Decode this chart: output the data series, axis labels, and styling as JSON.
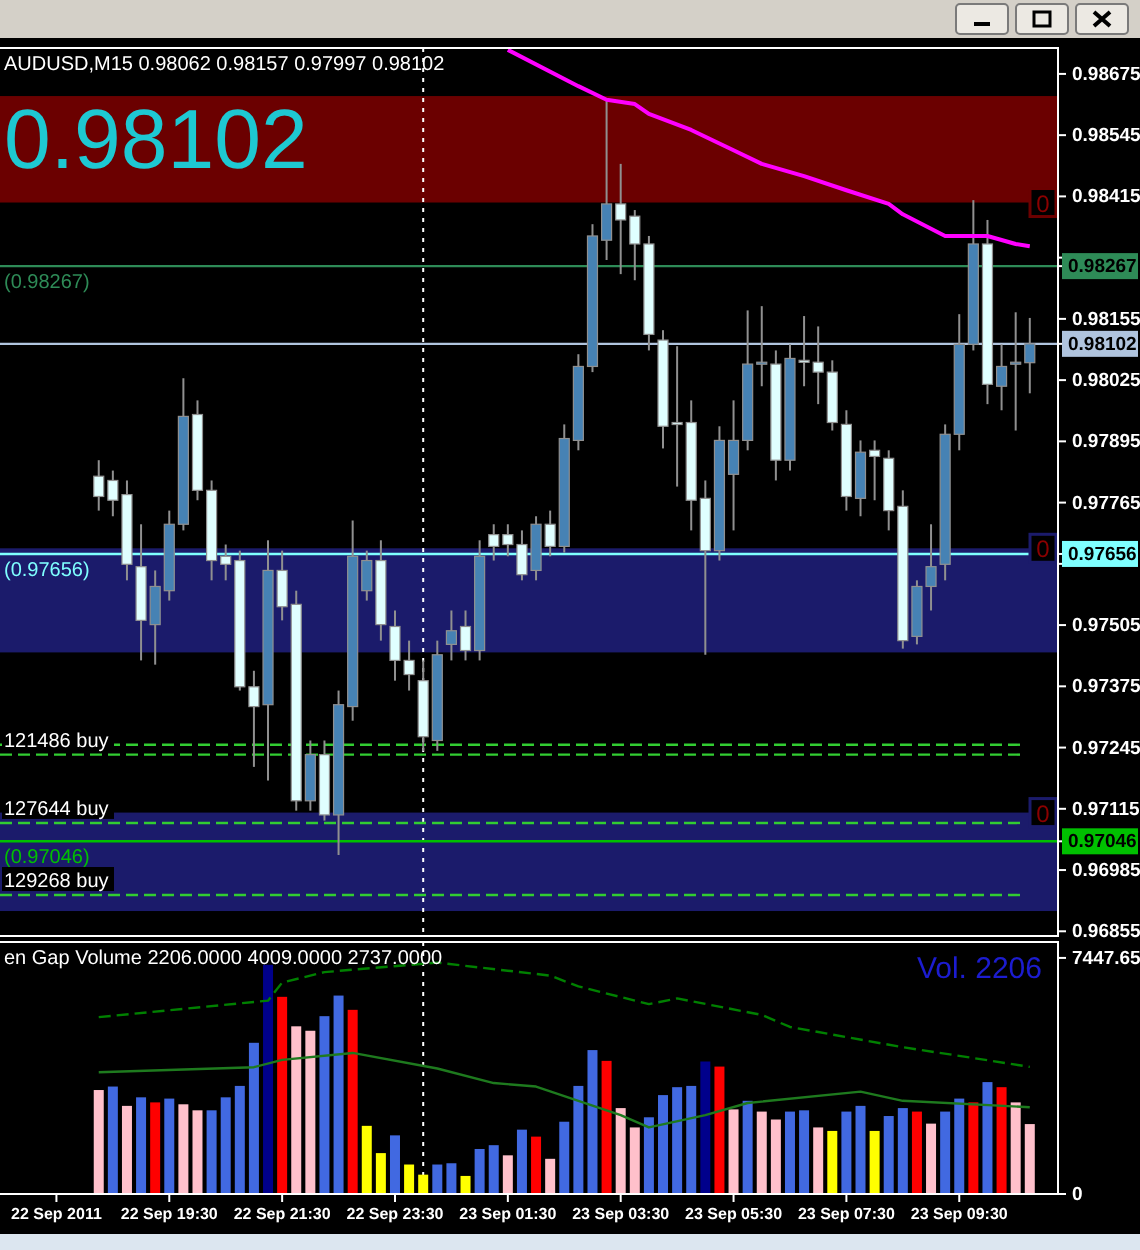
{
  "chart_data": [
    {
      "type": "candlestick",
      "title": "AUDUSD,M15 0.98062 0.98157 0.97997 0.98102",
      "annotations": [
        "0.98102"
      ],
      "x": [
        "2011-09-22T18:15",
        "2011-09-22T18:30",
        "2011-09-22T18:45",
        "2011-09-22T19:00",
        "2011-09-22T19:15",
        "2011-09-22T19:30",
        "2011-09-22T19:45",
        "2011-09-22T20:00",
        "2011-09-22T20:15",
        "2011-09-22T20:30",
        "2011-09-22T20:45",
        "2011-09-22T21:00",
        "2011-09-22T21:15",
        "2011-09-22T21:30",
        "2011-09-22T21:45",
        "2011-09-22T22:00",
        "2011-09-22T22:15",
        "2011-09-22T22:30",
        "2011-09-22T22:45",
        "2011-09-22T23:00",
        "2011-09-22T23:15",
        "2011-09-22T23:30",
        "2011-09-22T23:45",
        "2011-09-23T00:00",
        "2011-09-23T00:15",
        "2011-09-23T00:30",
        "2011-09-23T00:45",
        "2011-09-23T01:00",
        "2011-09-23T01:15",
        "2011-09-23T01:30",
        "2011-09-23T01:45",
        "2011-09-23T02:00",
        "2011-09-23T02:15",
        "2011-09-23T02:30",
        "2011-09-23T02:45",
        "2011-09-23T03:00",
        "2011-09-23T03:15",
        "2011-09-23T03:30",
        "2011-09-23T03:45",
        "2011-09-23T04:00",
        "2011-09-23T04:15",
        "2011-09-23T04:30",
        "2011-09-23T04:45",
        "2011-09-23T05:00",
        "2011-09-23T05:15",
        "2011-09-23T05:30",
        "2011-09-23T05:45",
        "2011-09-23T06:00",
        "2011-09-23T06:15",
        "2011-09-23T06:30",
        "2011-09-23T06:45",
        "2011-09-23T07:00",
        "2011-09-23T07:15",
        "2011-09-23T07:30",
        "2011-09-23T07:45",
        "2011-09-23T08:00",
        "2011-09-23T08:15",
        "2011-09-23T08:30",
        "2011-09-23T08:45",
        "2011-09-23T09:00",
        "2011-09-23T09:15",
        "2011-09-23T09:30",
        "2011-09-23T09:45",
        "2011-09-23T10:00",
        "2011-09-23T10:15",
        "2011-09-23T10:30",
        "2011-09-23T10:45"
      ],
      "ohlc": [
        [
          0.97821,
          0.97855,
          0.97748,
          0.97778
        ],
        [
          0.97812,
          0.97833,
          0.97736,
          0.9777
        ],
        [
          0.97782,
          0.97812,
          0.976,
          0.97634
        ],
        [
          0.97629,
          0.97719,
          0.9743,
          0.97515
        ],
        [
          0.97506,
          0.97621,
          0.97421,
          0.97587
        ],
        [
          0.97578,
          0.97748,
          0.97557,
          0.97719
        ],
        [
          0.97719,
          0.98029,
          0.97706,
          0.97948
        ],
        [
          0.97952,
          0.97982,
          0.9777,
          0.97791
        ],
        [
          0.97791,
          0.97812,
          0.976,
          0.97642
        ],
        [
          0.97651,
          0.97676,
          0.976,
          0.97634
        ],
        [
          0.97642,
          0.97663,
          0.97366,
          0.97374
        ],
        [
          0.97374,
          0.97408,
          0.97204,
          0.97332
        ],
        [
          0.97336,
          0.97685,
          0.97175,
          0.97621
        ],
        [
          0.97621,
          0.97663,
          0.97515,
          0.97544
        ],
        [
          0.97549,
          0.97578,
          0.97111,
          0.97132
        ],
        [
          0.97132,
          0.9726,
          0.97111,
          0.9723
        ],
        [
          0.9723,
          0.9726,
          0.9709,
          0.97102
        ],
        [
          0.97102,
          0.97366,
          0.97017,
          0.97336
        ],
        [
          0.97332,
          0.97727,
          0.97302,
          0.97651
        ],
        [
          0.97578,
          0.97663,
          0.97557,
          0.97642
        ],
        [
          0.97642,
          0.97685,
          0.97472,
          0.97506
        ],
        [
          0.97502,
          0.97536,
          0.97387,
          0.9743
        ],
        [
          0.9743,
          0.97472,
          0.97366,
          0.974
        ],
        [
          0.97387,
          0.9743,
          0.97238,
          0.97268
        ],
        [
          0.9726,
          0.97472,
          0.97238,
          0.97442
        ],
        [
          0.97464,
          0.97536,
          0.9743,
          0.97493
        ],
        [
          0.97502,
          0.97536,
          0.9743,
          0.97451
        ],
        [
          0.97451,
          0.97685,
          0.9743,
          0.97651
        ],
        [
          0.97697,
          0.97719,
          0.97642,
          0.97672
        ],
        [
          0.97697,
          0.97719,
          0.97651,
          0.97676
        ],
        [
          0.97676,
          0.97706,
          0.976,
          0.97612
        ],
        [
          0.97621,
          0.97736,
          0.976,
          0.97719
        ],
        [
          0.97719,
          0.97748,
          0.97651,
          0.97672
        ],
        [
          0.97672,
          0.97931,
          0.97659,
          0.97901
        ],
        [
          0.97897,
          0.9808,
          0.97876,
          0.98054
        ],
        [
          0.98054,
          0.98356,
          0.98042,
          0.98331
        ],
        [
          0.98322,
          0.9862,
          0.9828,
          0.98399
        ],
        [
          0.98399,
          0.98484,
          0.9825,
          0.98365
        ],
        [
          0.98373,
          0.98386,
          0.98237,
          0.98314
        ],
        [
          0.98314,
          0.98331,
          0.98088,
          0.98122
        ],
        [
          0.9811,
          0.98131,
          0.9788,
          0.97927
        ],
        [
          0.97935,
          0.98097,
          0.97799,
          0.97931
        ],
        [
          0.97935,
          0.97982,
          0.97706,
          0.9777
        ],
        [
          0.97774,
          0.97812,
          0.97442,
          0.97663
        ],
        [
          0.97663,
          0.97927,
          0.97642,
          0.97897
        ],
        [
          0.97825,
          0.97982,
          0.97706,
          0.97897
        ],
        [
          0.97897,
          0.98173,
          0.97876,
          0.98059
        ],
        [
          0.98059,
          0.98182,
          0.98012,
          0.98063
        ],
        [
          0.98059,
          0.98088,
          0.97812,
          0.97855
        ],
        [
          0.97855,
          0.98101,
          0.97833,
          0.98071
        ],
        [
          0.98067,
          0.98161,
          0.98012,
          0.98063
        ],
        [
          0.98063,
          0.98139,
          0.97974,
          0.98042
        ],
        [
          0.98042,
          0.98067,
          0.97918,
          0.97935
        ],
        [
          0.97931,
          0.97961,
          0.97748,
          0.97778
        ],
        [
          0.97774,
          0.97897,
          0.97736,
          0.97872
        ],
        [
          0.97876,
          0.97897,
          0.9777,
          0.97863
        ],
        [
          0.97859,
          0.97876,
          0.97706,
          0.97748
        ],
        [
          0.97757,
          0.97791,
          0.97455,
          0.97472
        ],
        [
          0.97481,
          0.976,
          0.97464,
          0.97587
        ],
        [
          0.97587,
          0.97719,
          0.97536,
          0.97629
        ],
        [
          0.97634,
          0.97931,
          0.976,
          0.9791
        ],
        [
          0.9791,
          0.98165,
          0.97876,
          0.98101
        ],
        [
          0.98101,
          0.98407,
          0.98088,
          0.98314
        ],
        [
          0.98314,
          0.98365,
          0.97974,
          0.98016
        ],
        [
          0.98012,
          0.98101,
          0.97961,
          0.98054
        ],
        [
          0.98059,
          0.98169,
          0.97918,
          0.98063
        ],
        [
          0.98062,
          0.98157,
          0.97997,
          0.98102
        ]
      ],
      "colors": [
        "#e0ffff",
        "#e0ffff",
        "#e0ffff",
        "#e0ffff",
        "#4682b4",
        "#4682b4",
        "#4682b4",
        "#e0ffff",
        "#e0ffff",
        "#e0ffff",
        "#e0ffff",
        "#e0ffff",
        "#4682b4",
        "#e0ffff",
        "#e0ffff",
        "#4682b4",
        "#e0ffff",
        "#4682b4",
        "#4682b4",
        "#4682b4",
        "#e0ffff",
        "#e0ffff",
        "#e0ffff",
        "#e0ffff",
        "#4682b4",
        "#4682b4",
        "#e0ffff",
        "#4682b4",
        "#e0ffff",
        "#e0ffff",
        "#e0ffff",
        "#4682b4",
        "#e0ffff",
        "#4682b4",
        "#4682b4",
        "#4682b4",
        "#4682b4",
        "#e0ffff",
        "#e0ffff",
        "#e0ffff",
        "#e0ffff",
        "#e0ffff",
        "#e0ffff",
        "#e0ffff",
        "#4682b4",
        "#4682b4",
        "#4682b4",
        "#4682b4",
        "#e0ffff",
        "#4682b4",
        "#e0ffff",
        "#e0ffff",
        "#e0ffff",
        "#e0ffff",
        "#4682b4",
        "#e0ffff",
        "#e0ffff",
        "#e0ffff",
        "#4682b4",
        "#4682b4",
        "#4682b4",
        "#4682b4",
        "#4682b4",
        "#e0ffff",
        "#4682b4",
        "#4682b4",
        "#4682b4"
      ],
      "series": [
        {
          "type": "line",
          "color": "#ff00ff",
          "x": [
            "2011-09-23T01:30",
            "2011-09-23T02:45",
            "2011-09-23T03:15",
            "2011-09-23T03:45",
            "2011-09-23T04:00",
            "2011-09-23T04:45",
            "2011-09-23T05:30",
            "2011-09-23T06:00",
            "2011-09-23T06:45",
            "2011-09-23T07:30",
            "2011-09-23T08:15",
            "2011-09-23T08:30",
            "2011-09-23T09:15",
            "2011-09-23T10:00",
            "2011-09-23T10:30",
            "2011-09-23T10:45"
          ],
          "values": [
            0.98726,
            0.98649,
            0.9862,
            0.98611,
            0.9859,
            0.98556,
            0.98513,
            0.98484,
            0.98458,
            0.98428,
            0.98399,
            0.98377,
            0.98331,
            0.98331,
            0.98314,
            0.98309
          ]
        }
      ],
      "xlim": [
        "2011-09-22T16:30",
        "2011-09-23T11:15"
      ],
      "ylim": [
        0.96845,
        0.9873
      ],
      "yticks": [
        0.98675,
        0.98545,
        0.98415,
        {
          "value": 0.98285,
          "label": null
        },
        0.98267,
        0.98155,
        0.98102,
        0.98025,
        0.97895,
        0.97765,
        0.97656,
        {
          "value": 0.97635,
          "label": null
        },
        0.97505,
        0.97375,
        0.97245,
        0.97115,
        0.97046,
        0.96985,
        0.96855
      ],
      "tick_labels": "y",
      "bands": [
        {
          "axis": "y",
          "from": 0.98628,
          "to": 0.98402,
          "label": "0",
          "color": "#6b0000"
        },
        {
          "axis": "y",
          "from": 0.97447,
          "to": 0.97668,
          "label": "0",
          "color": "#1b1b6b"
        },
        {
          "axis": "y",
          "from": 0.96898,
          "to": 0.97107,
          "label": "0",
          "color": "#1b1b6b"
        }
      ],
      "ref_lines": [
        {
          "axis": "x",
          "value": "2011-09-23T00:00",
          "color": "#ffffff",
          "line_style": "dotted"
        },
        {
          "axis": "y",
          "value": 0.98267,
          "label": "(0.98267)",
          "color": "#2e8b57",
          "line_style": "solid"
        },
        {
          "axis": "y",
          "value": 0.98102,
          "color": "#b0c4de",
          "line_style": "solid"
        },
        {
          "axis": "y",
          "value": 0.97656,
          "label": "(0.97656)",
          "color": "#7fffff",
          "line_style": "solid"
        },
        {
          "axis": "y",
          "value": 0.97046,
          "label": "(0.97046)",
          "color": "#00c000",
          "line_style": "solid"
        },
        {
          "axis": "y",
          "value": 0.97251,
          "color": "#32cd32",
          "line_style": "dashed"
        },
        {
          "axis": "y",
          "value": 0.9723,
          "label": "121486 buy",
          "color": "#32cd32",
          "line_style": "dashed"
        },
        {
          "axis": "y",
          "value": 0.97085,
          "label": "127644 buy",
          "color": "#32cd32",
          "line_style": "dashed"
        },
        {
          "axis": "y",
          "value": 0.96932,
          "label": "129268 buy",
          "color": "#32cd32",
          "line_style": "dashed"
        }
      ]
    },
    {
      "type": "bar",
      "title": "en Gap Volume 2206.0000 4009.0000 2737.0000",
      "annotations": [
        "Vol.  2206"
      ],
      "x": [
        "2011-09-22T18:15",
        "2011-09-22T18:30",
        "2011-09-22T18:45",
        "2011-09-22T19:00",
        "2011-09-22T19:15",
        "2011-09-22T19:30",
        "2011-09-22T19:45",
        "2011-09-22T20:00",
        "2011-09-22T20:15",
        "2011-09-22T20:30",
        "2011-09-22T20:45",
        "2011-09-22T21:00",
        "2011-09-22T21:15",
        "2011-09-22T21:30",
        "2011-09-22T21:45",
        "2011-09-22T22:00",
        "2011-09-22T22:15",
        "2011-09-22T22:30",
        "2011-09-22T22:45",
        "2011-09-22T23:00",
        "2011-09-22T23:15",
        "2011-09-22T23:30",
        "2011-09-22T23:45",
        "2011-09-23T00:00",
        "2011-09-23T00:15",
        "2011-09-23T00:30",
        "2011-09-23T00:45",
        "2011-09-23T01:00",
        "2011-09-23T01:15",
        "2011-09-23T01:30",
        "2011-09-23T01:45",
        "2011-09-23T02:00",
        "2011-09-23T02:15",
        "2011-09-23T02:30",
        "2011-09-23T02:45",
        "2011-09-23T03:00",
        "2011-09-23T03:15",
        "2011-09-23T03:30",
        "2011-09-23T03:45",
        "2011-09-23T04:00",
        "2011-09-23T04:15",
        "2011-09-23T04:30",
        "2011-09-23T04:45",
        "2011-09-23T05:00",
        "2011-09-23T05:15",
        "2011-09-23T05:30",
        "2011-09-23T05:45",
        "2011-09-23T06:00",
        "2011-09-23T06:15",
        "2011-09-23T06:30",
        "2011-09-23T06:45",
        "2011-09-23T07:00",
        "2011-09-23T07:15",
        "2011-09-23T07:30",
        "2011-09-23T07:45",
        "2011-09-23T08:00",
        "2011-09-23T08:15",
        "2011-09-23T08:30",
        "2011-09-23T08:45",
        "2011-09-23T09:00",
        "2011-09-23T09:15",
        "2011-09-23T09:30",
        "2011-09-23T09:45",
        "2011-09-23T10:00",
        "2011-09-23T10:15",
        "2011-09-23T10:30",
        "2011-09-23T10:45"
      ],
      "values": [
        3280,
        3390,
        2780,
        3050,
        2890,
        3010,
        2830,
        2640,
        2640,
        3050,
        3410,
        4770,
        7230,
        6220,
        5290,
        5150,
        5610,
        6260,
        5810,
        2150,
        1290,
        1850,
        930,
        610,
        930,
        970,
        570,
        1420,
        1540,
        1220,
        2030,
        1810,
        1110,
        2280,
        3410,
        4540,
        4200,
        2710,
        2100,
        2420,
        3120,
        3370,
        3410,
        4180,
        4020,
        2670,
        2940,
        2600,
        2350,
        2600,
        2640,
        2100,
        1990,
        2600,
        2780,
        1990,
        2460,
        2710,
        2600,
        2220,
        2600,
        3010,
        2890,
        3530,
        3370,
        2890,
        2206
      ],
      "colors": [
        "#ffc0cb",
        "#4169e1",
        "#ffc0cb",
        "#4169e1",
        "#ff0000",
        "#4169e1",
        "#ffc0cb",
        "#ffc0cb",
        "#4169e1",
        "#4169e1",
        "#4169e1",
        "#4169e1",
        "#00008b",
        "#ff0000",
        "#ffc0cb",
        "#ffc0cb",
        "#4169e1",
        "#4169e1",
        "#ff0000",
        "#ffff00",
        "#ffff00",
        "#4169e1",
        "#ffff00",
        "#ffff00",
        "#4169e1",
        "#4169e1",
        "#ffff00",
        "#4169e1",
        "#4169e1",
        "#ffc0cb",
        "#4169e1",
        "#ff0000",
        "#ffc0cb",
        "#4169e1",
        "#4169e1",
        "#4169e1",
        "#ff0000",
        "#ffc0cb",
        "#ffc0cb",
        "#4169e1",
        "#4169e1",
        "#4169e1",
        "#4169e1",
        "#00008b",
        "#ff0000",
        "#ffc0cb",
        "#4169e1",
        "#ffc0cb",
        "#ffc0cb",
        "#4169e1",
        "#4169e1",
        "#ffc0cb",
        "#ffff00",
        "#4169e1",
        "#4169e1",
        "#ffff00",
        "#4169e1",
        "#4169e1",
        "#ff0000",
        "#ffc0cb",
        "#4169e1",
        "#4169e1",
        "#ff0000",
        "#4169e1",
        "#ff0000",
        "#ffc0cb",
        "#ffc0cb"
      ],
      "series": [
        {
          "type": "line",
          "color": "#008000",
          "line_style": "dashed",
          "x": [
            "2011-09-22T18:15",
            "2011-09-22T21:15",
            "2011-09-22T21:30",
            "2011-09-22T22:15",
            "2011-09-23T00:15",
            "2011-09-23T02:15",
            "2011-09-23T02:45",
            "2011-09-23T04:00",
            "2011-09-23T04:30",
            "2011-09-23T06:00",
            "2011-09-23T06:30",
            "2011-09-23T08:30",
            "2011-09-23T09:45",
            "2011-09-23T10:45"
          ],
          "values": [
            5580,
            6100,
            6670,
            7000,
            7300,
            6890,
            6550,
            5990,
            6170,
            5650,
            5270,
            4630,
            4290,
            4009
          ]
        },
        {
          "type": "line",
          "color": "#1e7a1e",
          "line_style": "solid",
          "x": [
            "2011-09-22T18:15",
            "2011-09-22T21:00",
            "2011-09-22T21:30",
            "2011-09-22T22:45",
            "2011-09-23T00:15",
            "2011-09-23T01:15",
            "2011-09-23T02:00",
            "2011-09-23T03:30",
            "2011-09-23T04:00",
            "2011-09-23T05:00",
            "2011-09-23T05:45",
            "2011-09-23T07:45",
            "2011-09-23T08:30",
            "2011-09-23T10:45"
          ],
          "values": [
            3840,
            4000,
            4230,
            4450,
            3960,
            3500,
            3390,
            2490,
            2100,
            2490,
            2870,
            3230,
            2940,
            2737
          ]
        }
      ],
      "xlim": [
        "2011-09-22T16:30",
        "2011-09-23T11:15"
      ],
      "xticks": [
        {
          "value": "2011-09-22T17:30",
          "label": "22 Sep 2011"
        },
        {
          "value": "2011-09-22T19:30",
          "label": "22 Sep 19:30"
        },
        {
          "value": "2011-09-22T21:30",
          "label": "22 Sep 21:30"
        },
        {
          "value": "2011-09-22T23:30",
          "label": "22 Sep 23:30"
        },
        {
          "value": "2011-09-23T01:30",
          "label": "23 Sep 01:30"
        },
        {
          "value": "2011-09-23T03:30",
          "label": "23 Sep 03:30"
        },
        {
          "value": "2011-09-23T05:30",
          "label": "23 Sep 05:30"
        },
        {
          "value": "2011-09-23T07:30",
          "label": "23 Sep 07:30"
        },
        {
          "value": "2011-09-23T09:30",
          "label": "23 Sep 09:30"
        }
      ],
      "ylim": [
        0,
        7950
      ],
      "yticks": [
        0,
        7447.65
      ],
      "ref_lines": [
        {
          "axis": "x",
          "value": "2011-09-23T00:00",
          "color": "#ffffff",
          "line_style": "dotted"
        }
      ]
    }
  ]
}
